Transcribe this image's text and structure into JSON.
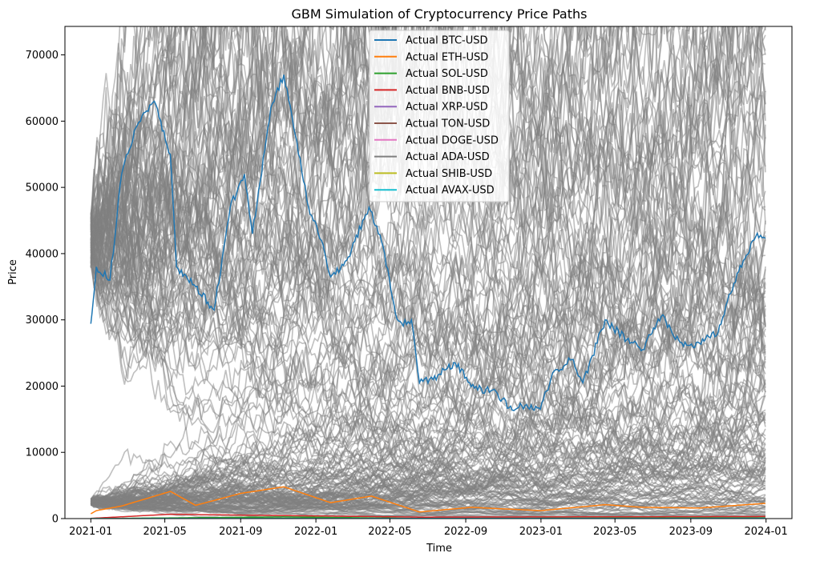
{
  "chart_data": {
    "type": "line",
    "title": "GBM Simulation of Cryptocurrency Price Paths",
    "xlabel": "Time",
    "ylabel": "Price",
    "x_range": [
      "2020-11-20",
      "2024-02-12"
    ],
    "ylim": [
      0,
      74300
    ],
    "x_ticks": [
      "2021-01",
      "2021-05",
      "2021-09",
      "2022-01",
      "2022-05",
      "2022-09",
      "2023-01",
      "2023-05",
      "2023-09",
      "2024-01"
    ],
    "y_ticks": [
      0,
      10000,
      20000,
      30000,
      40000,
      50000,
      60000,
      70000
    ],
    "legend_position": "top-center",
    "grid": false,
    "series": [
      {
        "name": "Actual BTC-USD",
        "color": "#1f77b4",
        "x": [
          "2021-01-01",
          "2021-01-05",
          "2021-01-10",
          "2021-02-01",
          "2021-02-20",
          "2021-03-15",
          "2021-04-14",
          "2021-05-10",
          "2021-05-20",
          "2021-06-20",
          "2021-07-20",
          "2021-08-15",
          "2021-09-07",
          "2021-09-20",
          "2021-10-20",
          "2021-11-10",
          "2021-12-01",
          "2021-12-20",
          "2022-01-10",
          "2022-01-25",
          "2022-02-20",
          "2022-03-28",
          "2022-04-20",
          "2022-05-10",
          "2022-05-20",
          "2022-06-05",
          "2022-06-18",
          "2022-07-10",
          "2022-08-15",
          "2022-09-15",
          "2022-10-20",
          "2022-11-10",
          "2022-12-01",
          "2022-12-31",
          "2023-01-20",
          "2023-02-20",
          "2023-03-10",
          "2023-04-15",
          "2023-05-20",
          "2023-06-15",
          "2023-07-15",
          "2023-08-20",
          "2023-09-15",
          "2023-10-15",
          "2023-11-15",
          "2023-12-15",
          "2023-12-31"
        ],
        "values": [
          29400,
          33000,
          38000,
          36000,
          52000,
          59000,
          63000,
          55000,
          38000,
          35000,
          31500,
          47000,
          52000,
          43000,
          62000,
          67000,
          57000,
          47000,
          42000,
          36500,
          39000,
          47000,
          41000,
          31000,
          29500,
          30000,
          20500,
          21000,
          23500,
          19700,
          19200,
          16700,
          17000,
          16500,
          22000,
          24000,
          20500,
          30000,
          27000,
          25500,
          30500,
          26000,
          26500,
          28000,
          37000,
          42500,
          42300
        ]
      },
      {
        "name": "Actual ETH-USD",
        "color": "#ff7f0e",
        "x": [
          "2021-01-01",
          "2021-01-10",
          "2021-02-20",
          "2021-05-10",
          "2021-06-20",
          "2021-09-01",
          "2021-11-10",
          "2022-01-25",
          "2022-04-01",
          "2022-06-18",
          "2022-09-10",
          "2022-12-31",
          "2023-04-15",
          "2023-06-15",
          "2023-09-15",
          "2023-11-15",
          "2023-12-31"
        ],
        "values": [
          730,
          1200,
          1900,
          4100,
          2000,
          3800,
          4800,
          2400,
          3400,
          1000,
          1700,
          1200,
          2100,
          1700,
          1600,
          2000,
          2300
        ]
      },
      {
        "name": "Actual SOL-USD",
        "color": "#2ca02c",
        "x": [
          "2021-01-01",
          "2021-11-10",
          "2022-06-18",
          "2023-12-31"
        ],
        "values": [
          1.5,
          250,
          30,
          100
        ]
      },
      {
        "name": "Actual BNB-USD",
        "color": "#d62728",
        "x": [
          "2021-01-01",
          "2021-05-10",
          "2022-06-18",
          "2023-12-31"
        ],
        "values": [
          37,
          650,
          220,
          310
        ]
      },
      {
        "name": "Actual XRP-USD",
        "color": "#9467bd",
        "x": [
          "2021-01-01",
          "2023-12-31"
        ],
        "values": [
          0.2,
          0.6
        ]
      },
      {
        "name": "Actual TON-USD",
        "color": "#8c564b",
        "x": [
          "2021-01-01",
          "2023-12-31"
        ],
        "values": [
          0.6,
          2.3
        ]
      },
      {
        "name": "Actual DOGE-USD",
        "color": "#e377c2",
        "x": [
          "2021-01-01",
          "2023-12-31"
        ],
        "values": [
          0.005,
          0.09
        ]
      },
      {
        "name": "Actual ADA-USD",
        "color": "#7f7f7f",
        "x": [
          "2021-01-01",
          "2023-12-31"
        ],
        "values": [
          0.18,
          0.6
        ]
      },
      {
        "name": "Actual SHIB-USD",
        "color": "#bcbd22",
        "x": [
          "2021-01-01",
          "2023-12-31"
        ],
        "values": [
          1e-07,
          1e-05
        ]
      },
      {
        "name": "Actual AVAX-USD",
        "color": "#17becf",
        "x": [
          "2021-01-01",
          "2023-12-31"
        ],
        "values": [
          3.5,
          39
        ]
      }
    ],
    "simulation": {
      "color": "#808080",
      "opacity": 0.5,
      "start_date": "2021-01-01",
      "end_date": "2023-12-31",
      "high_group_start": 42000,
      "low_group_start": 2500
    }
  }
}
